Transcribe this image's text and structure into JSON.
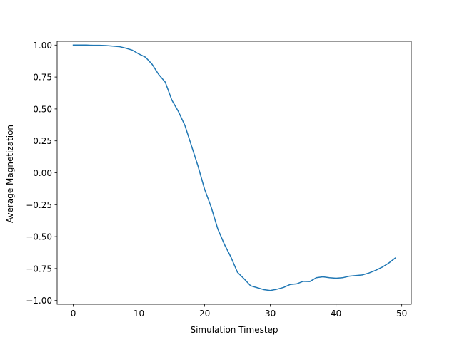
{
  "chart_data": {
    "type": "line",
    "title": "",
    "xlabel": "Simulation Timestep",
    "ylabel": "Average Magnetization",
    "xlim": [
      -2.45,
      51.45
    ],
    "ylim": [
      -1.0296,
      1.0296
    ],
    "xticks": [
      0,
      10,
      20,
      30,
      40,
      50
    ],
    "yticks": [
      -1.0,
      -0.75,
      -0.5,
      -0.25,
      0.0,
      0.25,
      0.5,
      0.75,
      1.0
    ],
    "xtick_labels": [
      "0",
      "10",
      "20",
      "30",
      "40",
      "50"
    ],
    "ytick_labels": [
      "−1.00",
      "−0.75",
      "−0.50",
      "−0.25",
      "0.00",
      "0.25",
      "0.50",
      "0.75",
      "1.00"
    ],
    "grid": false,
    "series": [
      {
        "color": "#1f77b4",
        "x": [
          0,
          1,
          2,
          3,
          4,
          5,
          6,
          7,
          8,
          9,
          10,
          11,
          12,
          13,
          14,
          15,
          16,
          17,
          18,
          19,
          20,
          21,
          22,
          23,
          24,
          25,
          26,
          27,
          28,
          29,
          30,
          31,
          32,
          33,
          34,
          35,
          36,
          37,
          38,
          39,
          40,
          41,
          42,
          43,
          44,
          45,
          46,
          47,
          48,
          49
        ],
        "y": [
          1.0,
          1.0,
          1.0,
          0.998,
          0.998,
          0.996,
          0.992,
          0.988,
          0.976,
          0.96,
          0.93,
          0.905,
          0.85,
          0.77,
          0.71,
          0.57,
          0.48,
          0.37,
          0.21,
          0.05,
          -0.13,
          -0.27,
          -0.44,
          -0.56,
          -0.66,
          -0.78,
          -0.83,
          -0.885,
          -0.9,
          -0.915,
          -0.922,
          -0.912,
          -0.898,
          -0.875,
          -0.87,
          -0.85,
          -0.852,
          -0.822,
          -0.815,
          -0.822,
          -0.826,
          -0.822,
          -0.81,
          -0.805,
          -0.8,
          -0.785,
          -0.765,
          -0.74,
          -0.708,
          -0.668
        ]
      }
    ]
  }
}
